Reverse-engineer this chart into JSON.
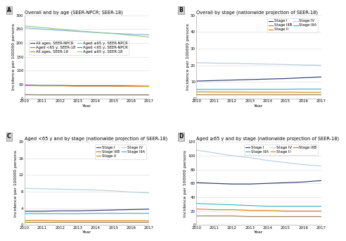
{
  "years": [
    2010,
    2011,
    2012,
    2013,
    2014,
    2015,
    2016,
    2017
  ],
  "panel_A": {
    "title": "Overall and by age (SEER-NPCR; SEER-18)",
    "ylabel": "Incidence per 100000 persons",
    "xlabel": "Year",
    "ylim": [
      0,
      300
    ],
    "yticks": [
      0,
      50,
      100,
      150,
      200,
      250,
      300
    ],
    "series": {
      "All ages, SEER-NPCR": {
        "color": "#2e3f6e",
        "values": [
          48,
          47,
          47,
          46,
          46,
          46,
          45,
          44
        ]
      },
      "All ages, SEER-18": {
        "color": "#d4820a",
        "values": [
          47,
          46,
          46,
          45,
          45,
          45,
          44,
          44
        ]
      },
      "Aged <65 y, SEER-NPCR": {
        "color": "#3a8ab5",
        "values": [
          14,
          14,
          14,
          14,
          14,
          14,
          14,
          14
        ]
      },
      "Aged <65 y, SEER-18": {
        "color": "#9c8054",
        "values": [
          14,
          13,
          13,
          13,
          13,
          13,
          13,
          13
        ]
      },
      "Aged ≥65 y, SEER-NPCR": {
        "color": "#8ab4d4",
        "values": [
          255,
          250,
          246,
          242,
          238,
          235,
          232,
          230
        ]
      },
      "Aged ≥65 y, SEER-18": {
        "color": "#8dc98d",
        "values": [
          262,
          256,
          250,
          244,
          239,
          234,
          228,
          222
        ]
      }
    },
    "legend_order": [
      "All ages, SEER-NPCR",
      "Aged <65 y, SEER-18",
      "All ages, SEER-18",
      "Aged ≥65 y, SEER-NPCR",
      "Aged <65 y, SEER-NPCR",
      "Aged ≥65 y, SEER-18"
    ]
  },
  "panel_B": {
    "title": "Overall by stage (nationwide projection of SEER-18)",
    "ylabel": "Incidence per 100000 persons",
    "xlabel": "Year",
    "ylim": [
      0,
      50
    ],
    "yticks": [
      0,
      10,
      20,
      30,
      40,
      50
    ],
    "series": {
      "Stage I": {
        "color": "#2e3f6e",
        "values": [
          10.5,
          10.8,
          11.1,
          11.4,
          11.7,
          12.0,
          12.5,
          13.0
        ]
      },
      "Stage II": {
        "color": "#d4820a",
        "values": [
          4.0,
          3.9,
          3.9,
          3.8,
          3.8,
          3.8,
          3.7,
          3.7
        ]
      },
      "Stage IIIA": {
        "color": "#3ab5c8",
        "values": [
          5.5,
          5.5,
          5.5,
          5.6,
          5.6,
          5.6,
          5.7,
          5.7
        ]
      },
      "Stage IIIB": {
        "color": "#9c8054",
        "values": [
          2.3,
          2.3,
          2.3,
          2.3,
          2.3,
          2.3,
          2.3,
          2.3
        ]
      },
      "Stage IV": {
        "color": "#b8cede",
        "values": [
          21.5,
          21.3,
          21.1,
          20.9,
          20.7,
          20.5,
          20.2,
          20.0
        ]
      }
    },
    "legend_order": [
      "Stage I",
      "Stage IIIB",
      "Stage II",
      "Stage IV",
      "Stage IIIA"
    ]
  },
  "panel_C": {
    "title": "Aged <65 y and by stage (nationwide projection of SEER-18)",
    "ylabel": "Incidence per 100000 persons",
    "xlabel": "Year",
    "ylim": [
      0,
      20
    ],
    "yticks": [
      0,
      4,
      8,
      12,
      16,
      20
    ],
    "series": {
      "Stage I": {
        "color": "#2e3f6e",
        "values": [
          3.3,
          3.3,
          3.4,
          3.4,
          3.5,
          3.6,
          3.7,
          3.8
        ]
      },
      "Stage II": {
        "color": "#d4820a",
        "values": [
          1.1,
          1.1,
          1.0,
          1.0,
          1.0,
          1.0,
          1.0,
          1.0
        ]
      },
      "Stage IIIA": {
        "color": "#3ab5c8",
        "values": [
          2.7,
          2.7,
          2.7,
          2.7,
          2.8,
          2.8,
          2.8,
          2.8
        ]
      },
      "Stage IIIB": {
        "color": "#9c8054",
        "values": [
          0.8,
          0.8,
          0.8,
          0.8,
          0.8,
          0.8,
          0.8,
          0.8
        ]
      },
      "Stage IV": {
        "color": "#b8cede",
        "values": [
          8.8,
          8.7,
          8.6,
          8.5,
          8.4,
          8.2,
          7.9,
          7.7
        ]
      }
    },
    "legend_order": [
      "Stage I",
      "Stage IIIB",
      "Stage II",
      "Stage IV",
      "Stage IIIA"
    ]
  },
  "panel_D": {
    "title": "Aged ≥65 y and by stage (nationwide projection of SEER-18)",
    "ylabel": "Incidence per 100000 persons",
    "xlabel": "Year",
    "ylim": [
      0,
      120
    ],
    "yticks": [
      0,
      20,
      40,
      60,
      80,
      100,
      120
    ],
    "series": {
      "Stage I": {
        "color": "#2e3f6e",
        "values": [
          61,
          60,
          59,
          59,
          60,
          61,
          62,
          64
        ]
      },
      "Stage II": {
        "color": "#d4820a",
        "values": [
          23,
          22,
          22,
          21,
          21,
          20,
          20,
          20
        ]
      },
      "Stage IIIA": {
        "color": "#3ab5c8",
        "values": [
          31,
          30,
          29,
          28,
          27,
          27,
          27,
          27
        ]
      },
      "Stage IIIB": {
        "color": "#9c8054",
        "values": [
          13,
          13,
          13,
          12,
          12,
          12,
          12,
          12
        ]
      },
      "Stage IV": {
        "color": "#b8cede",
        "values": [
          108,
          104,
          100,
          97,
          93,
          90,
          87,
          85
        ]
      }
    },
    "legend_order": [
      "Stage I",
      "Stage IIIA",
      "Stage IV",
      "Stage II",
      "Stage IIIB"
    ]
  },
  "label_fontsize": 4.5,
  "tick_fontsize": 4.0,
  "title_fontsize": 4.8,
  "legend_fontsize": 3.8,
  "linewidth": 0.85,
  "background_color": "#ffffff",
  "grid_color": "#d8d8d8",
  "panel_labels": [
    "A",
    "B",
    "C",
    "D"
  ]
}
